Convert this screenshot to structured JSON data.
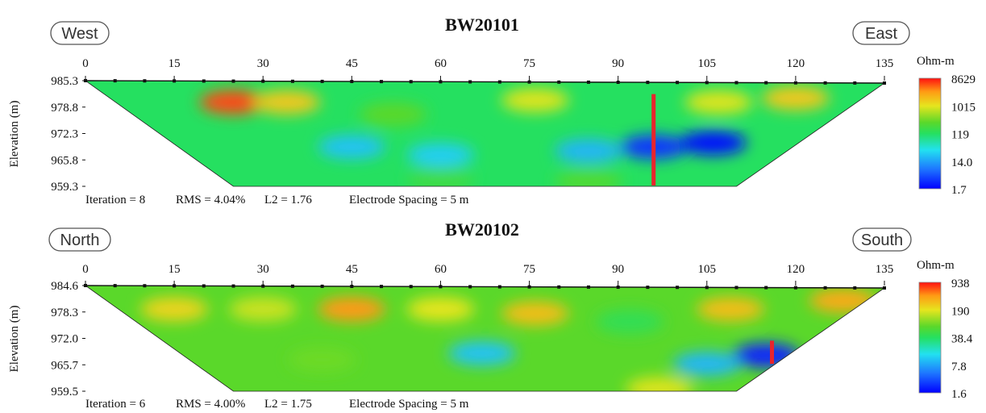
{
  "chart_data": [
    {
      "type": "heatmap",
      "title": "BW20101",
      "direction_left": "West",
      "direction_right": "East",
      "xticks": [
        0,
        15,
        30,
        45,
        60,
        75,
        90,
        105,
        120,
        135
      ],
      "yticks": [
        "985.3",
        "978.8",
        "972.3",
        "965.8",
        "959.3"
      ],
      "ylabel": "Elevation (m)",
      "unit": "Ohm-m",
      "colorbar": [
        "8629",
        "1015",
        "119",
        "14.0",
        "1.7"
      ],
      "footer": [
        "Iteration = 8",
        "RMS = 4.04%",
        "L2 = 1.76",
        "Electrode Spacing = 5 m"
      ],
      "marker": {
        "x": 96,
        "y_top": 982,
        "y_bottom": 959.5,
        "color": "#e8252d"
      },
      "surface_top": 985.3,
      "bottom_elev": 959.3,
      "trapezoid_bottom_x": [
        25,
        110
      ],
      "anomalies": [
        {
          "x": 25,
          "y": 980,
          "value": 0.95
        },
        {
          "x": 34,
          "y": 980,
          "value": 0.8
        },
        {
          "x": 76,
          "y": 980.5,
          "value": 0.74
        },
        {
          "x": 107,
          "y": 980,
          "value": 0.74
        },
        {
          "x": 120,
          "y": 981,
          "value": 0.8
        },
        {
          "x": 52,
          "y": 977,
          "value": 0.6
        },
        {
          "x": 45,
          "y": 969,
          "value": 0.3
        },
        {
          "x": 60,
          "y": 967,
          "value": 0.32
        },
        {
          "x": 96,
          "y": 969,
          "value": 0.08
        },
        {
          "x": 106,
          "y": 970,
          "value": 0.02
        },
        {
          "x": 85,
          "y": 968,
          "value": 0.28
        },
        {
          "x": 60,
          "y": 961,
          "value": 0.55
        },
        {
          "x": 85,
          "y": 960.5,
          "value": 0.58
        }
      ]
    },
    {
      "type": "heatmap",
      "title": "BW20102",
      "direction_left": "North",
      "direction_right": "South",
      "xticks": [
        0,
        15,
        30,
        45,
        60,
        75,
        90,
        105,
        120,
        135
      ],
      "yticks": [
        "984.6",
        "978.3",
        "972.0",
        "965.7",
        "959.5"
      ],
      "ylabel": "Elevation (m)",
      "unit": "Ohm-m",
      "colorbar": [
        "938",
        "190",
        "38.4",
        "7.8",
        "1.6"
      ],
      "footer": [
        "Iteration = 6",
        "RMS = 4.00%",
        "L2 = 1.75",
        "Electrode Spacing = 5 m"
      ],
      "marker": {
        "x": 116,
        "y_top": 971.5,
        "y_bottom": 966,
        "color": "#e8252d"
      },
      "surface_top": 984.6,
      "bottom_elev": 959.5,
      "trapezoid_bottom_x": [
        25,
        110
      ],
      "anomalies": [
        {
          "x": 15,
          "y": 979,
          "value": 0.78
        },
        {
          "x": 30,
          "y": 979,
          "value": 0.72
        },
        {
          "x": 45,
          "y": 979,
          "value": 0.88
        },
        {
          "x": 60,
          "y": 979,
          "value": 0.75
        },
        {
          "x": 76,
          "y": 978,
          "value": 0.82
        },
        {
          "x": 109,
          "y": 979,
          "value": 0.82
        },
        {
          "x": 128,
          "y": 981,
          "value": 0.85
        },
        {
          "x": 92,
          "y": 976,
          "value": 0.52
        },
        {
          "x": 67,
          "y": 968.5,
          "value": 0.3
        },
        {
          "x": 40,
          "y": 967,
          "value": 0.62
        },
        {
          "x": 97,
          "y": 960,
          "value": 0.74
        },
        {
          "x": 115,
          "y": 968,
          "value": 0.05
        },
        {
          "x": 105,
          "y": 966,
          "value": 0.28
        }
      ]
    }
  ]
}
